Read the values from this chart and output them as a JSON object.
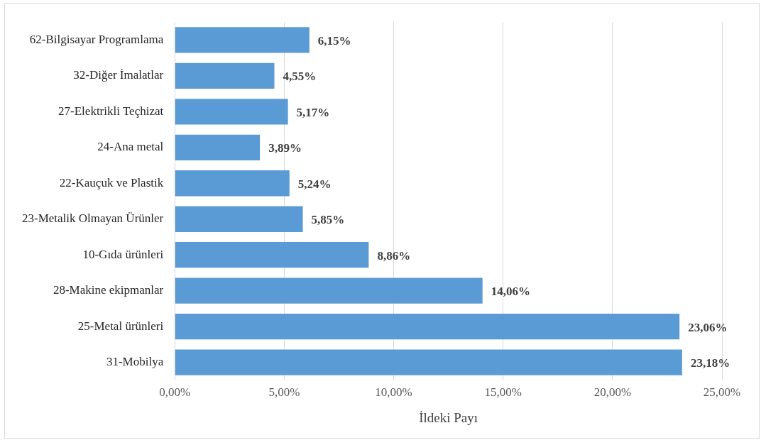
{
  "chart_data": {
    "type": "bar",
    "orientation": "horizontal",
    "xlabel": "İldeki Payı",
    "categories": [
      "62-Bilgisayar Programlama",
      "32-Diğer İmalatlar",
      "27-Elektrikli Teçhizat",
      "24-Ana metal",
      "22-Kauçuk ve Plastik",
      "23-Metalik Olmayan Ürünler",
      "10-Gıda ürünleri",
      "28-Makine ekipmanlar",
      "25-Metal ürünleri",
      "31-Mobilya"
    ],
    "values": [
      6.15,
      4.55,
      5.17,
      3.89,
      5.24,
      5.85,
      8.86,
      14.06,
      23.06,
      23.18
    ],
    "value_labels": [
      "6,15%",
      "4,55%",
      "5,17%",
      "3,89%",
      "5,24%",
      "5,85%",
      "8,86%",
      "14,06%",
      "23,06%",
      "23,18%"
    ],
    "color": "#5b9bd5",
    "xlim": [
      0,
      25
    ],
    "xticks": [
      {
        "value": 0,
        "label": "0,00%"
      },
      {
        "value": 5,
        "label": "5,00%"
      },
      {
        "value": 10,
        "label": "10,00%"
      },
      {
        "value": 15,
        "label": "15,00%"
      },
      {
        "value": 20,
        "label": "20,00%"
      },
      {
        "value": 25,
        "label": "25,00%"
      }
    ],
    "grid": "x"
  }
}
